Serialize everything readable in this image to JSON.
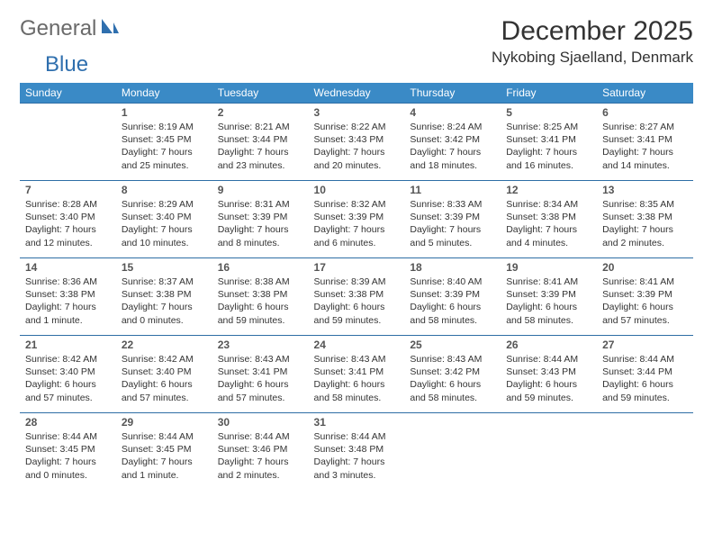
{
  "logo": {
    "general": "General",
    "blue": "Blue"
  },
  "title": "December 2025",
  "location": "Nykobing Sjaelland, Denmark",
  "colors": {
    "header_bg": "#3a8ac6",
    "header_text": "#ffffff",
    "rule": "#2e6ea5",
    "logo_general": "#6a6a6a",
    "logo_blue": "#2f6fae"
  },
  "dayNames": [
    "Sunday",
    "Monday",
    "Tuesday",
    "Wednesday",
    "Thursday",
    "Friday",
    "Saturday"
  ],
  "weeks": [
    [
      null,
      {
        "n": "1",
        "sr": "Sunrise: 8:19 AM",
        "ss": "Sunset: 3:45 PM",
        "dl": "Daylight: 7 hours and 25 minutes."
      },
      {
        "n": "2",
        "sr": "Sunrise: 8:21 AM",
        "ss": "Sunset: 3:44 PM",
        "dl": "Daylight: 7 hours and 23 minutes."
      },
      {
        "n": "3",
        "sr": "Sunrise: 8:22 AM",
        "ss": "Sunset: 3:43 PM",
        "dl": "Daylight: 7 hours and 20 minutes."
      },
      {
        "n": "4",
        "sr": "Sunrise: 8:24 AM",
        "ss": "Sunset: 3:42 PM",
        "dl": "Daylight: 7 hours and 18 minutes."
      },
      {
        "n": "5",
        "sr": "Sunrise: 8:25 AM",
        "ss": "Sunset: 3:41 PM",
        "dl": "Daylight: 7 hours and 16 minutes."
      },
      {
        "n": "6",
        "sr": "Sunrise: 8:27 AM",
        "ss": "Sunset: 3:41 PM",
        "dl": "Daylight: 7 hours and 14 minutes."
      }
    ],
    [
      {
        "n": "7",
        "sr": "Sunrise: 8:28 AM",
        "ss": "Sunset: 3:40 PM",
        "dl": "Daylight: 7 hours and 12 minutes."
      },
      {
        "n": "8",
        "sr": "Sunrise: 8:29 AM",
        "ss": "Sunset: 3:40 PM",
        "dl": "Daylight: 7 hours and 10 minutes."
      },
      {
        "n": "9",
        "sr": "Sunrise: 8:31 AM",
        "ss": "Sunset: 3:39 PM",
        "dl": "Daylight: 7 hours and 8 minutes."
      },
      {
        "n": "10",
        "sr": "Sunrise: 8:32 AM",
        "ss": "Sunset: 3:39 PM",
        "dl": "Daylight: 7 hours and 6 minutes."
      },
      {
        "n": "11",
        "sr": "Sunrise: 8:33 AM",
        "ss": "Sunset: 3:39 PM",
        "dl": "Daylight: 7 hours and 5 minutes."
      },
      {
        "n": "12",
        "sr": "Sunrise: 8:34 AM",
        "ss": "Sunset: 3:38 PM",
        "dl": "Daylight: 7 hours and 4 minutes."
      },
      {
        "n": "13",
        "sr": "Sunrise: 8:35 AM",
        "ss": "Sunset: 3:38 PM",
        "dl": "Daylight: 7 hours and 2 minutes."
      }
    ],
    [
      {
        "n": "14",
        "sr": "Sunrise: 8:36 AM",
        "ss": "Sunset: 3:38 PM",
        "dl": "Daylight: 7 hours and 1 minute."
      },
      {
        "n": "15",
        "sr": "Sunrise: 8:37 AM",
        "ss": "Sunset: 3:38 PM",
        "dl": "Daylight: 7 hours and 0 minutes."
      },
      {
        "n": "16",
        "sr": "Sunrise: 8:38 AM",
        "ss": "Sunset: 3:38 PM",
        "dl": "Daylight: 6 hours and 59 minutes."
      },
      {
        "n": "17",
        "sr": "Sunrise: 8:39 AM",
        "ss": "Sunset: 3:38 PM",
        "dl": "Daylight: 6 hours and 59 minutes."
      },
      {
        "n": "18",
        "sr": "Sunrise: 8:40 AM",
        "ss": "Sunset: 3:39 PM",
        "dl": "Daylight: 6 hours and 58 minutes."
      },
      {
        "n": "19",
        "sr": "Sunrise: 8:41 AM",
        "ss": "Sunset: 3:39 PM",
        "dl": "Daylight: 6 hours and 58 minutes."
      },
      {
        "n": "20",
        "sr": "Sunrise: 8:41 AM",
        "ss": "Sunset: 3:39 PM",
        "dl": "Daylight: 6 hours and 57 minutes."
      }
    ],
    [
      {
        "n": "21",
        "sr": "Sunrise: 8:42 AM",
        "ss": "Sunset: 3:40 PM",
        "dl": "Daylight: 6 hours and 57 minutes."
      },
      {
        "n": "22",
        "sr": "Sunrise: 8:42 AM",
        "ss": "Sunset: 3:40 PM",
        "dl": "Daylight: 6 hours and 57 minutes."
      },
      {
        "n": "23",
        "sr": "Sunrise: 8:43 AM",
        "ss": "Sunset: 3:41 PM",
        "dl": "Daylight: 6 hours and 57 minutes."
      },
      {
        "n": "24",
        "sr": "Sunrise: 8:43 AM",
        "ss": "Sunset: 3:41 PM",
        "dl": "Daylight: 6 hours and 58 minutes."
      },
      {
        "n": "25",
        "sr": "Sunrise: 8:43 AM",
        "ss": "Sunset: 3:42 PM",
        "dl": "Daylight: 6 hours and 58 minutes."
      },
      {
        "n": "26",
        "sr": "Sunrise: 8:44 AM",
        "ss": "Sunset: 3:43 PM",
        "dl": "Daylight: 6 hours and 59 minutes."
      },
      {
        "n": "27",
        "sr": "Sunrise: 8:44 AM",
        "ss": "Sunset: 3:44 PM",
        "dl": "Daylight: 6 hours and 59 minutes."
      }
    ],
    [
      {
        "n": "28",
        "sr": "Sunrise: 8:44 AM",
        "ss": "Sunset: 3:45 PM",
        "dl": "Daylight: 7 hours and 0 minutes."
      },
      {
        "n": "29",
        "sr": "Sunrise: 8:44 AM",
        "ss": "Sunset: 3:45 PM",
        "dl": "Daylight: 7 hours and 1 minute."
      },
      {
        "n": "30",
        "sr": "Sunrise: 8:44 AM",
        "ss": "Sunset: 3:46 PM",
        "dl": "Daylight: 7 hours and 2 minutes."
      },
      {
        "n": "31",
        "sr": "Sunrise: 8:44 AM",
        "ss": "Sunset: 3:48 PM",
        "dl": "Daylight: 7 hours and 3 minutes."
      },
      null,
      null,
      null
    ]
  ]
}
